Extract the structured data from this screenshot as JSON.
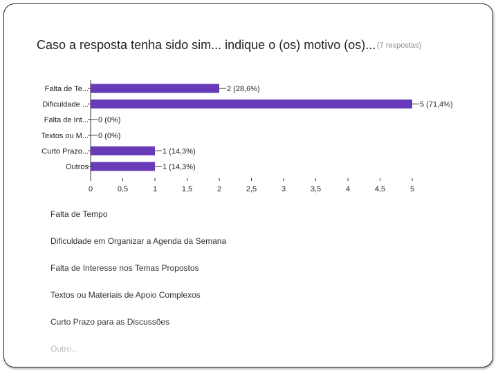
{
  "question_title": "Caso a resposta tenha sido sim... indique o (os) motivo (os)...",
  "response_count": "(7 respostas)",
  "chart_data": {
    "type": "bar",
    "orientation": "horizontal",
    "title": "Caso a resposta tenha sido sim... indique o (os) motivo (os)...",
    "categories": [
      "Falta de Te...",
      "Dificuldade ...",
      "Falta de Int...",
      "Textos ou M...",
      "Curto Prazo...",
      "Outros"
    ],
    "values": [
      2,
      5,
      0,
      0,
      1,
      1
    ],
    "value_labels": [
      "2 (28,6%)",
      "5 (71,4%)",
      "0 (0%)",
      "0 (0%)",
      "1 (14,3%)",
      "1 (14,3%)"
    ],
    "xticks": [
      "0",
      "0,5",
      "1",
      "1,5",
      "2",
      "2,5",
      "3",
      "3,5",
      "4",
      "4,5",
      "5"
    ],
    "xlim": [
      0,
      5
    ],
    "xlabel": "",
    "ylabel": "",
    "bar_color": "#673ab7"
  },
  "options": [
    "Falta de Tempo",
    "Dificuldade em Organizar a Agenda da Semana",
    "Falta de Interesse nos Temas Propostos",
    "Textos ou Materiais de Apoio Complexos",
    "Curto Prazo para as Discussões",
    "Outro..."
  ]
}
